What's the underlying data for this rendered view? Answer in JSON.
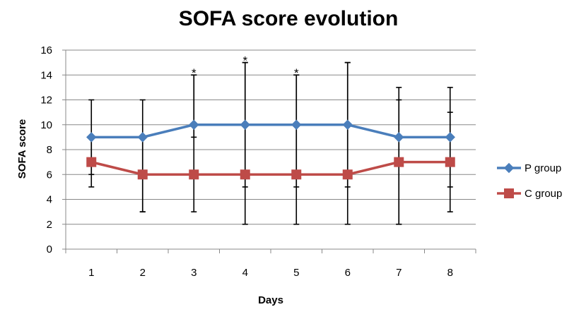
{
  "chart_data": {
    "type": "line",
    "title": "SOFA score evolution",
    "xlabel": "Days",
    "ylabel": "SOFA score",
    "categories": [
      "1",
      "2",
      "3",
      "4",
      "5",
      "6",
      "7",
      "8"
    ],
    "ylim": [
      0,
      16
    ],
    "yticks": [
      "0",
      "2",
      "4",
      "6",
      "8",
      "10",
      "12",
      "14",
      "16"
    ],
    "grid": true,
    "legend_position": "right",
    "series": [
      {
        "name": "P group",
        "color": "#4a7ebb",
        "marker": "diamond",
        "values": [
          9,
          9,
          10,
          10,
          10,
          10,
          9,
          9
        ],
        "error_low": [
          6,
          3,
          9,
          5,
          5,
          5,
          2,
          5
        ],
        "error_high": [
          12,
          12,
          14,
          15,
          14,
          15,
          12,
          11
        ]
      },
      {
        "name": "C group",
        "color": "#be4b48",
        "marker": "square",
        "values": [
          7,
          6,
          6,
          6,
          6,
          6,
          7,
          7
        ],
        "error_low": [
          5,
          3,
          3,
          2,
          2,
          2,
          2,
          3
        ],
        "error_high": [
          9,
          9,
          14,
          15,
          14,
          15,
          13,
          13
        ]
      }
    ],
    "annotations": [
      {
        "category": "3",
        "text": "*",
        "y": 14.3
      },
      {
        "category": "4",
        "text": "*",
        "y": 15.3
      },
      {
        "category": "5",
        "text": "*",
        "y": 14.3
      }
    ]
  }
}
